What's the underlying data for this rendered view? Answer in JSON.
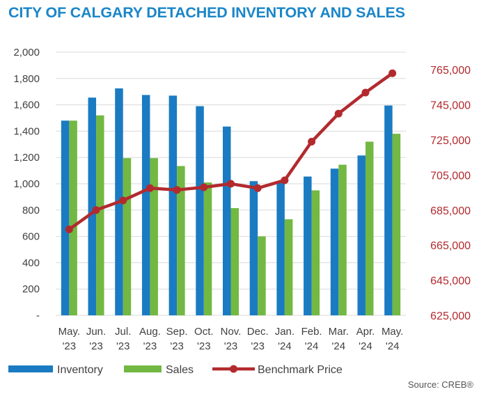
{
  "title": "CITY OF CALGARY DETACHED INVENTORY AND SALES",
  "source": "Source: CREB®",
  "chart_data": {
    "type": "bar",
    "categories": [
      [
        "May.",
        "'23"
      ],
      [
        "Jun.",
        "'23"
      ],
      [
        "Jul.",
        "'23"
      ],
      [
        "Aug.",
        "'23"
      ],
      [
        "Sep.",
        "'23"
      ],
      [
        "Oct.",
        "'23"
      ],
      [
        "Nov.",
        "'23"
      ],
      [
        "Dec.",
        "'23"
      ],
      [
        "Jan.",
        "'24"
      ],
      [
        "Feb.",
        "'24"
      ],
      [
        "Mar.",
        "'24"
      ],
      [
        "Apr.",
        "'24"
      ],
      [
        "May.",
        "'24"
      ]
    ],
    "series": [
      {
        "name": "Inventory",
        "type": "bar",
        "axis": "left",
        "color": "#1a7bc2",
        "values": [
          1480,
          1655,
          1725,
          1675,
          1670,
          1590,
          1435,
          1020,
          1010,
          1055,
          1115,
          1215,
          1595
        ]
      },
      {
        "name": "Sales",
        "type": "bar",
        "axis": "left",
        "color": "#72b843",
        "values": [
          1480,
          1520,
          1195,
          1195,
          1135,
          1010,
          815,
          600,
          730,
          950,
          1145,
          1320,
          1380
        ]
      },
      {
        "name": "Benchmark Price",
        "type": "line",
        "axis": "right",
        "color": "#b22a2e",
        "values": [
          674000,
          685000,
          690500,
          697500,
          696500,
          698000,
          700000,
          697500,
          702000,
          724000,
          740000,
          752000,
          763000
        ]
      }
    ],
    "y_left": {
      "min": 0,
      "max": 2000,
      "ticks": [
        "-",
        "200",
        "400",
        "600",
        "800",
        "1,000",
        "1,200",
        "1,400",
        "1,600",
        "1,800",
        "2,000"
      ]
    },
    "y_right": {
      "min": 625000,
      "max": 775000,
      "ticks": [
        "625,000",
        "645,000",
        "665,000",
        "685,000",
        "705,000",
        "725,000",
        "745,000",
        "765,000"
      ]
    },
    "grid": true,
    "legend": [
      "Inventory",
      "Sales",
      "Benchmark Price"
    ],
    "legend_position": "bottom-left"
  }
}
